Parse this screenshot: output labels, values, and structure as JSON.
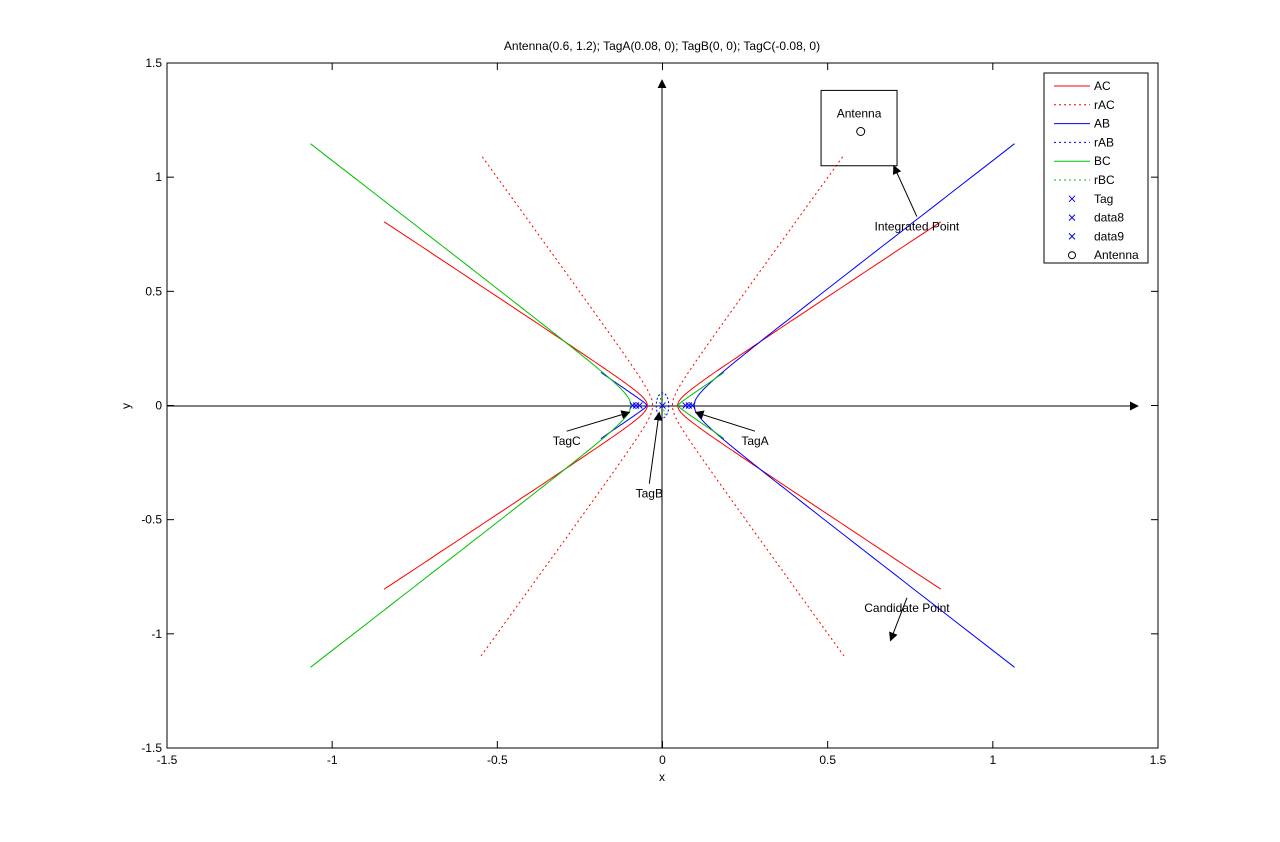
{
  "chart_data": {
    "type": "line",
    "title": "Antenna(0.6, 1.2); TagA(0.08, 0); TagB(0, 0); TagC(-0.08, 0)",
    "xlabel": "x",
    "ylabel": "y",
    "xlim": [
      -1.5,
      1.5
    ],
    "ylim": [
      -1.5,
      1.5
    ],
    "grid": false,
    "legend_position": "top-right",
    "xticks": [
      "-1.5",
      "-1",
      "-0.5",
      "0",
      "0.5",
      "1",
      "1.5"
    ],
    "yticks": [
      "-1.5",
      "-1",
      "-0.5",
      "0",
      "0.5",
      "1",
      "1.5"
    ],
    "antenna": [
      0.6,
      1.2
    ],
    "tags": {
      "TagA": [
        0.08,
        0
      ],
      "TagB": [
        0,
        0
      ],
      "TagC": [
        -0.08,
        0
      ]
    },
    "series": [
      {
        "name": "AC",
        "color": "#ff0000",
        "style": "solid",
        "kind": "hyperbola",
        "a": 0.046,
        "b": 0.044
      },
      {
        "name": "rAC",
        "color": "#ff0000",
        "style": "dotted",
        "kind": "hyperbola",
        "a": 0.03,
        "b": 0.06
      },
      {
        "name": "AB",
        "color": "#0000ff",
        "style": "solid",
        "kind": "hyperbola-shifted",
        "a": 0.056,
        "b": 0.066
      },
      {
        "name": "rAB",
        "color": "#0000ff",
        "style": "dotted",
        "kind": "circle",
        "r": 0.038
      },
      {
        "name": "BC",
        "color": "#00c000",
        "style": "solid",
        "kind": "hyperbola-shifted",
        "a": 0.056,
        "b": 0.066
      },
      {
        "name": "rBC",
        "color": "#00c000",
        "style": "dotted",
        "kind": "segment"
      },
      {
        "name": "Tag",
        "color": "#0000ff",
        "marker": "x",
        "points": [
          [
            0.08,
            0
          ],
          [
            0,
            0
          ],
          [
            -0.08,
            0
          ]
        ]
      },
      {
        "name": "data8",
        "color": "#0000ff",
        "marker": "x",
        "points": [
          [
            0.07,
            0
          ],
          [
            -0.07,
            0
          ]
        ]
      },
      {
        "name": "data9",
        "color": "#0000ff",
        "marker": "x",
        "points": [
          [
            0.09,
            0
          ],
          [
            -0.09,
            0
          ]
        ]
      },
      {
        "name": "Antenna",
        "color": "#000000",
        "marker": "o",
        "points": [
          [
            0.6,
            1.2
          ]
        ]
      }
    ],
    "antenna_box": {
      "x0": 0.48,
      "x1": 0.71,
      "y0": 1.05,
      "y1": 1.38,
      "label": "Antenna"
    },
    "annotations": [
      {
        "text": "Integrated Point",
        "point": [
          0.7,
          1.05
        ],
        "label_at": [
          0.77,
          0.81
        ]
      },
      {
        "text": "Candidate Point",
        "point": [
          0.69,
          -1.03
        ],
        "label_at": [
          0.74,
          -0.86
        ]
      },
      {
        "text": "TagA",
        "point": [
          0.1,
          -0.03
        ],
        "label_at": [
          0.28,
          -0.13
        ]
      },
      {
        "text": "TagB",
        "point": [
          -0.01,
          -0.03
        ],
        "label_at": [
          -0.04,
          -0.36
        ]
      },
      {
        "text": "TagC",
        "point": [
          -0.1,
          -0.03
        ],
        "label_at": [
          -0.29,
          -0.13
        ]
      }
    ]
  }
}
